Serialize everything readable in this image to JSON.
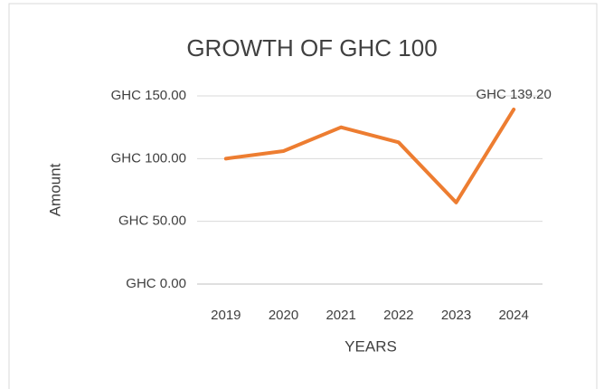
{
  "chart_data": {
    "type": "line",
    "title": "GROWTH OF GHC 100",
    "x_label": "YEARS",
    "y_label": "Amount",
    "categories": [
      "2019",
      "2020",
      "2021",
      "2022",
      "2023",
      "2024"
    ],
    "series": [
      {
        "name": "Amount",
        "color": "#ED7D31",
        "values": [
          100,
          106,
          125,
          113,
          65,
          139.2
        ],
        "value_labels": [
          null,
          null,
          null,
          null,
          null,
          "GHC 139.20"
        ]
      }
    ],
    "ylim": [
      0,
      150
    ],
    "yticks": [
      {
        "value": 0,
        "label": "GHC 0.00"
      },
      {
        "value": 50,
        "label": "GHC 50.00"
      },
      {
        "value": 100,
        "label": "GHC 100.00"
      },
      {
        "value": 150,
        "label": "GHC 150.00"
      }
    ],
    "grid": true
  }
}
